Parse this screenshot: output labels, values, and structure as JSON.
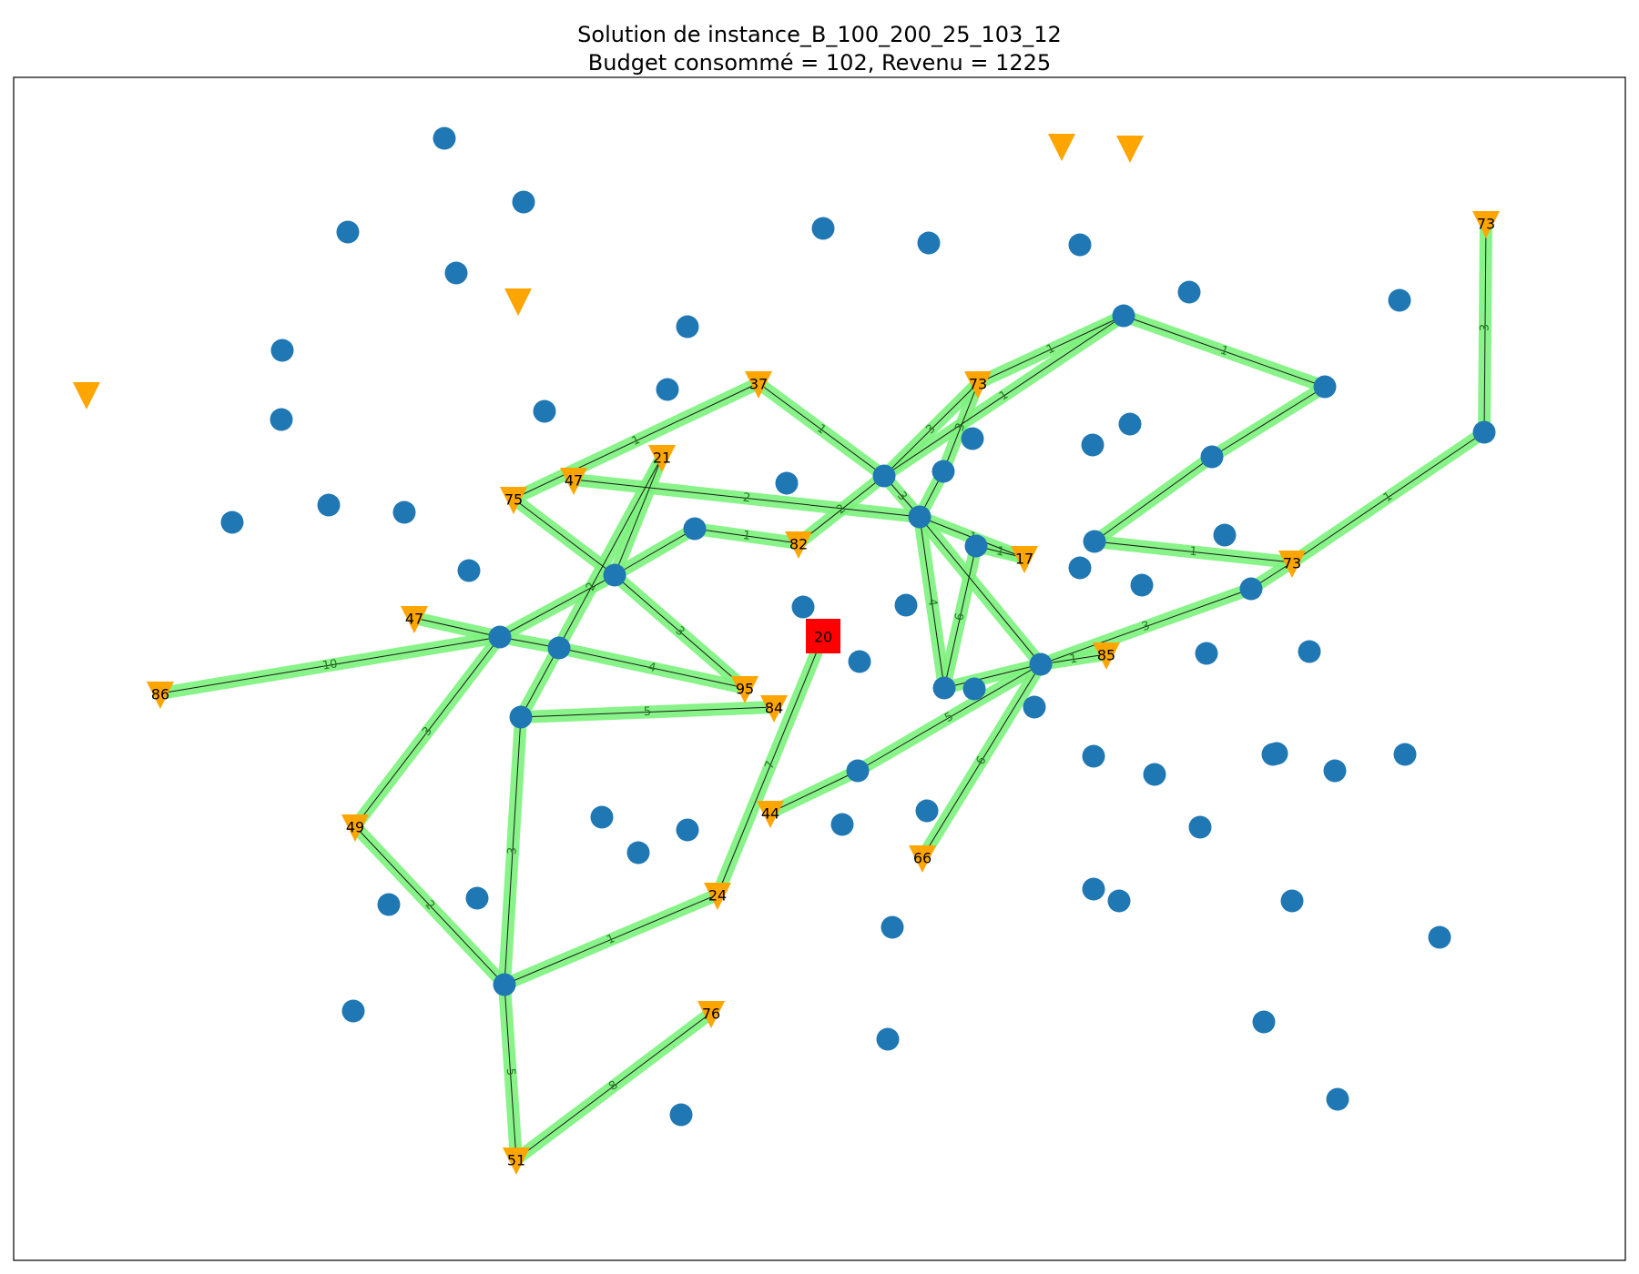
{
  "title": {
    "line1": "Solution de instance_B_100_200_25_103_12",
    "line2": "Budget consommé = 102, Revenu = 1225"
  },
  "colors": {
    "edge_highlight": "#7cf27c",
    "edge_line": "#1a1a1a",
    "edge_label": "#1f7a1f",
    "plain_node": "#1f77b4",
    "terminal": "#ffa500",
    "root": "#ff0000"
  },
  "root": {
    "id": "R",
    "label": "20"
  },
  "terminals": [
    {
      "id": "T73a",
      "label": "73"
    },
    {
      "id": "T37",
      "label": "37"
    },
    {
      "id": "T73b",
      "label": "73"
    },
    {
      "id": "T21",
      "label": "21"
    },
    {
      "id": "T47a",
      "label": "47"
    },
    {
      "id": "T75",
      "label": "75"
    },
    {
      "id": "T82",
      "label": "82"
    },
    {
      "id": "T17",
      "label": "17"
    },
    {
      "id": "T73c",
      "label": "73"
    },
    {
      "id": "T47b",
      "label": "47"
    },
    {
      "id": "T86",
      "label": "86"
    },
    {
      "id": "T95",
      "label": "95"
    },
    {
      "id": "T84",
      "label": "84"
    },
    {
      "id": "T85",
      "label": "85"
    },
    {
      "id": "T44",
      "label": "44"
    },
    {
      "id": "T66",
      "label": "66"
    },
    {
      "id": "T49",
      "label": "49"
    },
    {
      "id": "T24",
      "label": "24"
    },
    {
      "id": "T76",
      "label": "76"
    },
    {
      "id": "T51",
      "label": "51"
    },
    {
      "id": "U1",
      "label": ""
    },
    {
      "id": "U2",
      "label": ""
    },
    {
      "id": "U3",
      "label": ""
    },
    {
      "id": "U4",
      "label": ""
    }
  ],
  "edges": [
    {
      "from": "T73a",
      "to": "n_r1",
      "weight": "3"
    },
    {
      "from": "n_r1",
      "to": "T73c",
      "weight": "1"
    },
    {
      "from": "T73c",
      "to": "n_r3",
      "weight": ""
    },
    {
      "from": "n_r3",
      "to": "B",
      "weight": "3"
    },
    {
      "from": "B",
      "to": "T85",
      "weight": "1"
    },
    {
      "from": "B",
      "to": "A",
      "weight": ""
    },
    {
      "from": "B",
      "to": "T66",
      "weight": "6"
    },
    {
      "from": "B",
      "to": "n_c4",
      "weight": ""
    },
    {
      "from": "B",
      "to": "n_lo1",
      "weight": "5"
    },
    {
      "from": "n_lo1",
      "to": "T44",
      "weight": ""
    },
    {
      "from": "A",
      "to": "T17",
      "weight": "1"
    },
    {
      "from": "A",
      "to": "n_c4",
      "weight": "4"
    },
    {
      "from": "A",
      "to": "C",
      "weight": "3"
    },
    {
      "from": "A",
      "to": "T47a",
      "weight": "2"
    },
    {
      "from": "A",
      "to": "n_c2",
      "weight": ""
    },
    {
      "from": "n_c4",
      "to": "n_c3",
      "weight": "6"
    },
    {
      "from": "n_c3",
      "to": "T17",
      "weight": "1"
    },
    {
      "from": "C",
      "to": "T37",
      "weight": "1"
    },
    {
      "from": "C",
      "to": "T82",
      "weight": "2"
    },
    {
      "from": "C",
      "to": "T73b",
      "weight": "3"
    },
    {
      "from": "C",
      "to": "n_top",
      "weight": "1"
    },
    {
      "from": "T73b",
      "to": "n_top",
      "weight": "1"
    },
    {
      "from": "T73b",
      "to": "n_c2",
      "weight": "3"
    },
    {
      "from": "n_top",
      "to": "n_tr",
      "weight": "1"
    },
    {
      "from": "n_tr",
      "to": "n_r2",
      "weight": ""
    },
    {
      "from": "n_r2",
      "to": "n_c5",
      "weight": ""
    },
    {
      "from": "n_c5",
      "to": "T73c",
      "weight": "1"
    },
    {
      "from": "T37",
      "to": "T75",
      "weight": "1"
    },
    {
      "from": "T75",
      "to": "D",
      "weight": ""
    },
    {
      "from": "D",
      "to": "T95",
      "weight": "3"
    },
    {
      "from": "D",
      "to": "n_d1",
      "weight": ""
    },
    {
      "from": "n_d1",
      "to": "T82",
      "weight": "1"
    },
    {
      "from": "D",
      "to": "T21",
      "weight": ""
    },
    {
      "from": "D",
      "to": "E",
      "weight": ""
    },
    {
      "from": "E",
      "to": "T86",
      "weight": "10"
    },
    {
      "from": "E",
      "to": "T47b",
      "weight": ""
    },
    {
      "from": "E",
      "to": "n_e1",
      "weight": ""
    },
    {
      "from": "n_e1",
      "to": "T95",
      "weight": "4"
    },
    {
      "from": "E",
      "to": "T49",
      "weight": "3"
    },
    {
      "from": "T21",
      "to": "F",
      "weight": "2"
    },
    {
      "from": "F",
      "to": "T84",
      "weight": "5"
    },
    {
      "from": "F",
      "to": "G",
      "weight": "3"
    },
    {
      "from": "T49",
      "to": "G",
      "weight": "2"
    },
    {
      "from": "G",
      "to": "T24",
      "weight": "1"
    },
    {
      "from": "T24",
      "to": "R",
      "weight": "7"
    },
    {
      "from": "G",
      "to": "T51",
      "weight": "5"
    },
    {
      "from": "T51",
      "to": "T76",
      "weight": "8"
    }
  ]
}
